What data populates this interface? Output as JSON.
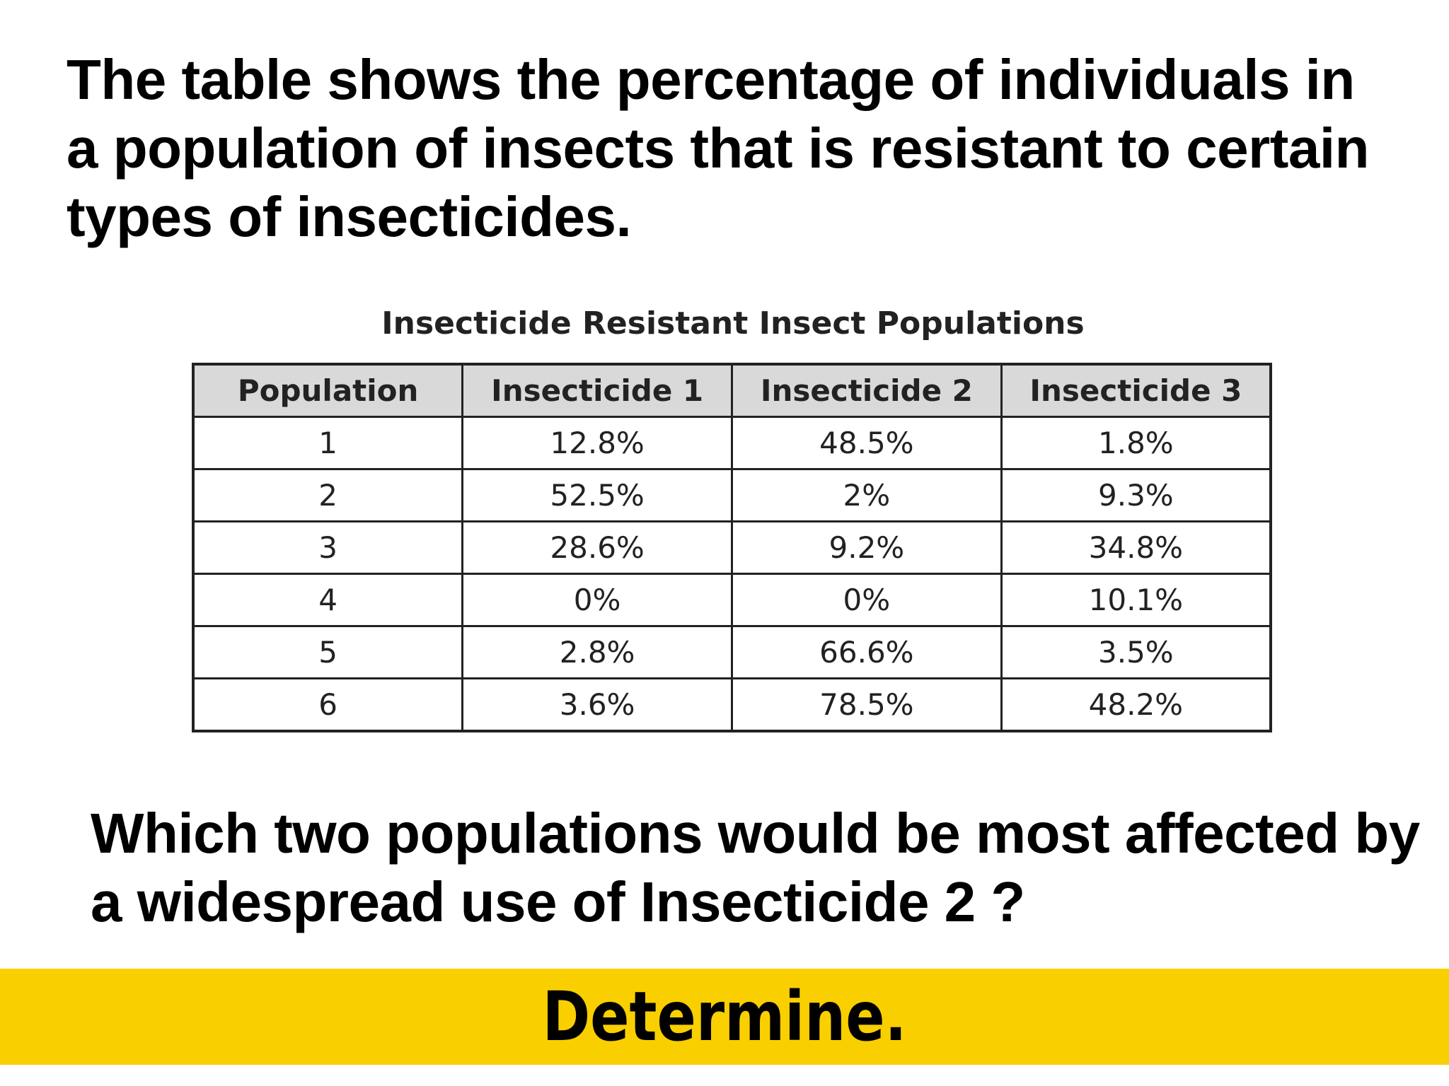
{
  "intro_text": "The table shows the percentage of individuals in a population of insects that is resistant to certain types of insecticides.",
  "question_text": "Which two populations would be most affected by a widespread use of Insecticide 2 ?",
  "banner": {
    "label": "Determine.",
    "color": "#f9cf00"
  },
  "chart_data": {
    "type": "table",
    "title": "Insecticide Resistant Insect Populations",
    "columns": [
      "Population",
      "Insecticide 1",
      "Insecticide 2",
      "Insecticide 3"
    ],
    "rows": [
      [
        "1",
        "12.8%",
        "48.5%",
        "1.8%"
      ],
      [
        "2",
        "52.5%",
        "2%",
        "9.3%"
      ],
      [
        "3",
        "28.6%",
        "9.2%",
        "34.8%"
      ],
      [
        "4",
        "0%",
        "0%",
        "10.1%"
      ],
      [
        "5",
        "2.8%",
        "66.6%",
        "3.5%"
      ],
      [
        "6",
        "3.6%",
        "78.5%",
        "48.2%"
      ]
    ]
  }
}
